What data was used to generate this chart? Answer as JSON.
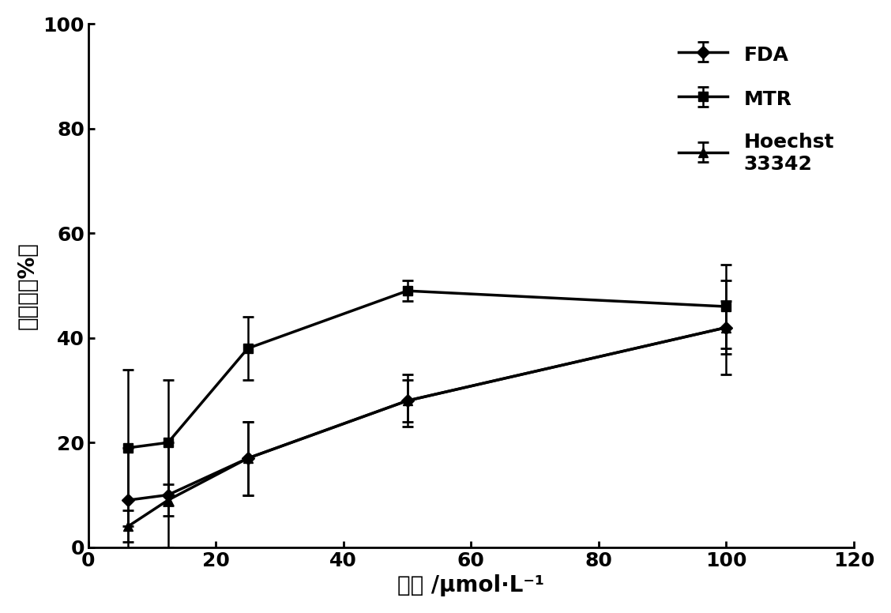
{
  "x": [
    6.25,
    12.5,
    25,
    50,
    100
  ],
  "FDA_y": [
    9,
    10,
    17,
    28,
    42
  ],
  "FDA_yerr": [
    10,
    10,
    7,
    5,
    5
  ],
  "MTR_y": [
    19,
    20,
    38,
    49,
    46
  ],
  "MTR_yerr": [
    15,
    12,
    6,
    2,
    8
  ],
  "Hoechst_y": [
    4,
    9,
    17,
    28,
    42
  ],
  "Hoechst_yerr": [
    3,
    3,
    7,
    4,
    9
  ],
  "xlabel": "芦丁 /μmol·L⁻¹",
  "ylabel": "保护率（%）",
  "xlim": [
    0,
    120
  ],
  "ylim": [
    0,
    100
  ],
  "xticks": [
    0,
    20,
    40,
    60,
    80,
    100,
    120
  ],
  "yticks": [
    0,
    20,
    40,
    60,
    80,
    100
  ],
  "legend_FDA": "FDA",
  "legend_MTR": "MTR",
  "legend_Hoechst": "Hoechst\n33342",
  "line_color": "#000000",
  "linewidth": 2.5,
  "markersize": 9,
  "capsize": 5,
  "background_color": "#ffffff",
  "label_fontsize": 20,
  "tick_fontsize": 18,
  "legend_fontsize": 18
}
